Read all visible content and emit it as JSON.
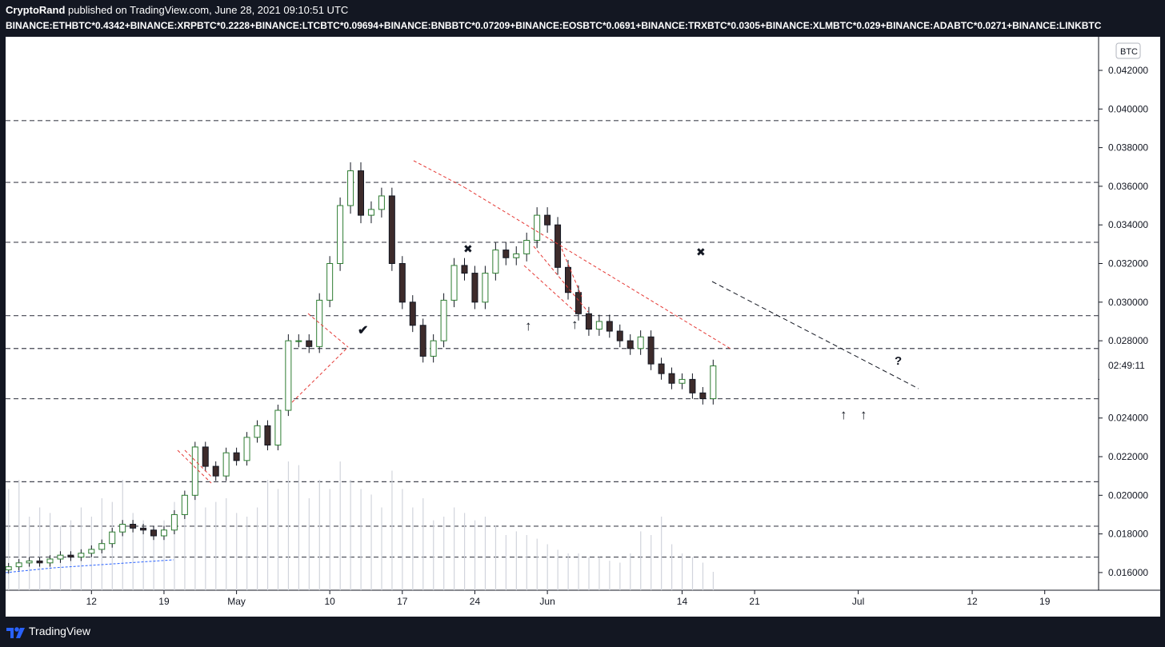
{
  "header": {
    "author": "CryptoRand",
    "published_text": " published on TradingView.com, June 28, 2021 09:10:51 UTC",
    "symbol": "BINANCE:ETHBTC*0.4342+BINANCE:XRPBTC*0.2228+BINANCE:LTCBTC*0.09694+BINANCE:BNBBTC*0.07209+BINANCE:EOSBTC*0.0691+BINANCE:TRXBTC*0.0305+BINANCE:XLMBTC*0.029+BINANCE:ADABTC*0.0271+BINANCE:LINKBTC"
  },
  "footer": {
    "brand": "TradingView"
  },
  "chart_data": {
    "type": "candlestick",
    "currency_label": "BTC",
    "countdown": "02:49:11",
    "ylim": [
      0.015,
      0.0436
    ],
    "y_ticks": [
      "0.016000",
      "0.018000",
      "0.020000",
      "0.022000",
      "0.024000",
      "0.026000",
      "0.028000",
      "0.030000",
      "0.032000",
      "0.034000",
      "0.036000",
      "0.038000",
      "0.040000",
      "0.042000"
    ],
    "x_ticks": [
      {
        "label": "12",
        "day": 12
      },
      {
        "label": "19",
        "day": 19
      },
      {
        "label": "May",
        "day": 26
      },
      {
        "label": "10",
        "day": 35
      },
      {
        "label": "17",
        "day": 42
      },
      {
        "label": "24",
        "day": 49
      },
      {
        "label": "Jun",
        "day": 56
      },
      {
        "label": "14",
        "day": 69
      },
      {
        "label": "21",
        "day": 76
      },
      {
        "label": "Jul",
        "day": 86
      },
      {
        "label": "12",
        "day": 97
      },
      {
        "label": "19",
        "day": 104
      }
    ],
    "horizontal_levels": [
      0.0394,
      0.0362,
      0.0331,
      0.0293,
      0.0276,
      0.025,
      0.0207,
      0.0184,
      0.0168
    ],
    "closes": [
      0.0163,
      0.0165,
      0.0166,
      0.0165,
      0.0167,
      0.0169,
      0.0168,
      0.017,
      0.0172,
      0.0175,
      0.0181,
      0.0185,
      0.0183,
      0.0182,
      0.0179,
      0.0182,
      0.019,
      0.02,
      0.0225,
      0.0215,
      0.021,
      0.0222,
      0.0218,
      0.023,
      0.0236,
      0.0226,
      0.0244,
      0.028,
      0.028,
      0.0277,
      0.0301,
      0.032,
      0.035,
      0.0368,
      0.0345,
      0.0348,
      0.0355,
      0.032,
      0.03,
      0.0288,
      0.0272,
      0.028,
      0.0301,
      0.0319,
      0.0315,
      0.03,
      0.0315,
      0.0327,
      0.0323,
      0.0325,
      0.0332,
      0.0345,
      0.034,
      0.0318,
      0.0305,
      0.0294,
      0.0286,
      0.029,
      0.0285,
      0.028,
      0.0276,
      0.0282,
      0.0268,
      0.0263,
      0.0258,
      0.026,
      0.0253,
      0.025,
      0.0267
    ],
    "volumes": [
      55,
      60,
      40,
      45,
      42,
      35,
      38,
      45,
      40,
      50,
      48,
      60,
      42,
      38,
      35,
      38,
      48,
      52,
      60,
      45,
      48,
      50,
      42,
      40,
      45,
      60,
      55,
      70,
      68,
      50,
      60,
      55,
      70,
      60,
      55,
      52,
      45,
      65,
      55,
      45,
      50,
      38,
      40,
      45,
      42,
      38,
      40,
      35,
      30,
      32,
      30,
      28,
      25,
      22,
      20,
      20,
      18,
      18,
      16,
      15,
      20,
      32,
      30,
      40,
      25,
      20,
      18,
      15,
      10
    ],
    "annotations": {
      "check": "✔",
      "x_marks": [
        "✖",
        "✖"
      ],
      "arrows": [
        "↑",
        "↑",
        "↑",
        "↑"
      ],
      "question": "?"
    }
  }
}
